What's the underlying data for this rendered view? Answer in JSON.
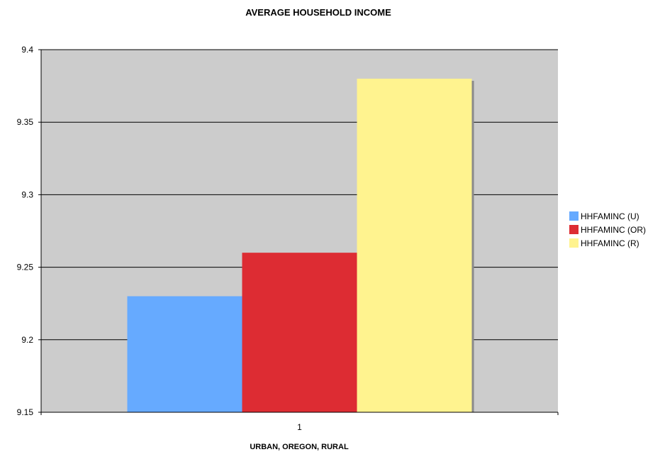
{
  "chart_data": {
    "type": "bar",
    "title": "AVERAGE HOUSEHOLD INCOME",
    "xlabel": "URBAN, OREGON, RURAL",
    "ylabel": "",
    "categories": [
      "1"
    ],
    "series": [
      {
        "name": "HHFAMINC (U)",
        "values": [
          9.23
        ],
        "color": "#66aaff"
      },
      {
        "name": "HHFAMINC (OR)",
        "values": [
          9.26
        ],
        "color": "#dd2c33"
      },
      {
        "name": "HHFAMINC (R)",
        "values": [
          9.38
        ],
        "color": "#fff38f"
      }
    ],
    "ylim": [
      9.15,
      9.4
    ],
    "yticks": [
      "9.15",
      "9.2",
      "9.25",
      "9.3",
      "9.35",
      "9.4"
    ],
    "grid": true,
    "plot_background": "#cccccc",
    "legend_position": "right"
  }
}
